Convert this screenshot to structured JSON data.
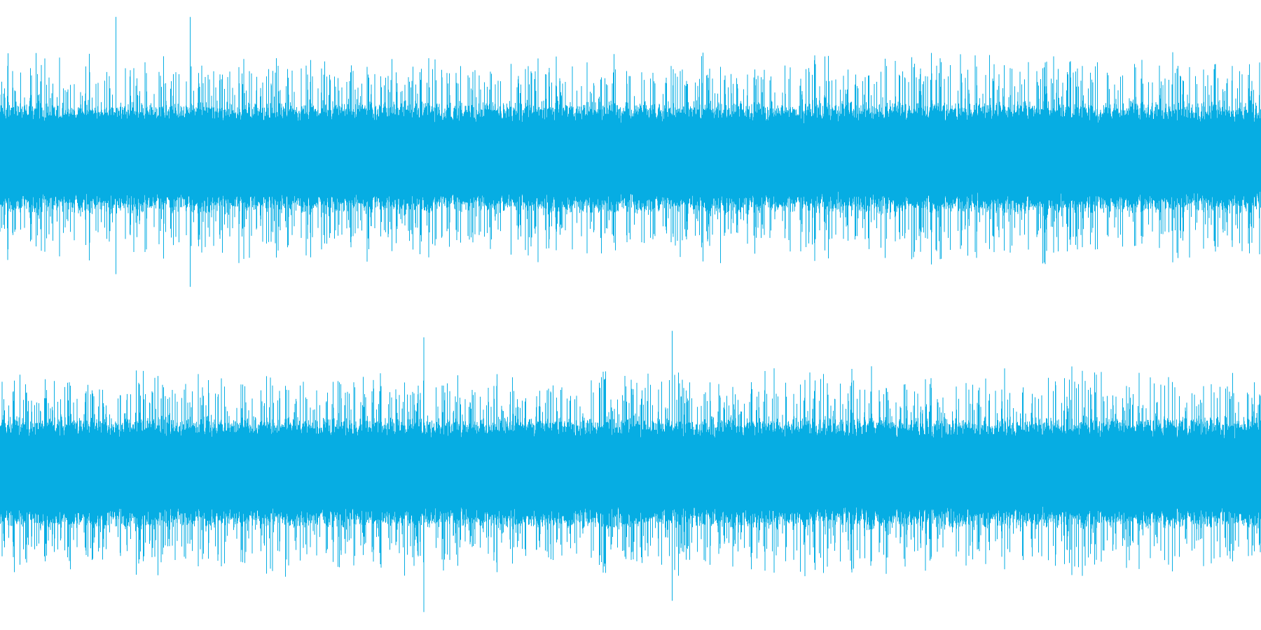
{
  "waveform": {
    "color": "#06ADE3",
    "background": "#FFFFFF",
    "channels": [
      {
        "id": "channel-1",
        "amplitude_core": 0.34,
        "amplitude_spikes": 0.7,
        "amplitude_peak": 0.92,
        "seed": 7
      },
      {
        "id": "channel-2",
        "amplitude_core": 0.34,
        "amplitude_spikes": 0.7,
        "amplitude_peak": 0.95,
        "seed": 19
      }
    ]
  }
}
